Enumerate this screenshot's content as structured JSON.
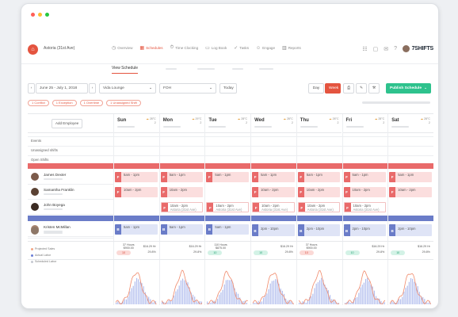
{
  "window": {
    "dots": [
      "#ff5f57",
      "#febc2e",
      "#28c840"
    ]
  },
  "header": {
    "location_name": "Astoria (31st Ave)",
    "nav": [
      {
        "label": "Overview",
        "icon": "clock-icon",
        "glyph": "◷"
      },
      {
        "label": "Schedules",
        "icon": "calendar-icon",
        "glyph": "▦",
        "active": true
      },
      {
        "label": "Time Clocking",
        "icon": "stopwatch-icon",
        "glyph": "⏱"
      },
      {
        "label": "Log Book",
        "icon": "book-icon",
        "glyph": "▭"
      },
      {
        "label": "Tasks",
        "icon": "check-icon",
        "glyph": "✓"
      },
      {
        "label": "Engage",
        "icon": "people-icon",
        "glyph": "☺"
      },
      {
        "label": "Reports",
        "icon": "chart-icon",
        "glyph": "▥"
      }
    ],
    "icons": [
      "grid-icon",
      "inbox-icon",
      "chat-icon",
      "help-icon"
    ],
    "brand": "7SHIFTS"
  },
  "subnav": {
    "view_schedule": "View Schedule"
  },
  "toolbar": {
    "date_range": "June 25 - July 1, 2018",
    "department": "Vida Lounge",
    "role": "FOH",
    "today": "Today",
    "day": "Day",
    "week": "Week",
    "publish": "Publish Schedule",
    "icons": [
      "print-icon",
      "edit-icon",
      "tools-icon"
    ]
  },
  "chips": [
    "1 Conflict",
    "1 Exception",
    "1 Overtime",
    "1 Unassigned Shift"
  ],
  "grid": {
    "add_employee": "Add Employee",
    "sections": {
      "events": "Events",
      "unassigned": "Unassigned shifts",
      "open": "Open Shifts"
    },
    "days": [
      {
        "name": "Sun",
        "stat": "28°C",
        "count": "2"
      },
      {
        "name": "Mon",
        "stat": "29°C",
        "count": "2"
      },
      {
        "name": "Tue",
        "stat": "28°C",
        "count": "2"
      },
      {
        "name": "Wed",
        "stat": "28°C",
        "count": "2"
      },
      {
        "name": "Thu",
        "stat": "26°C",
        "count": "2"
      },
      {
        "name": "Fri",
        "stat": "28°C",
        "count": "2"
      },
      {
        "name": "Sat",
        "stat": "28°C",
        "count": "2"
      }
    ],
    "employees": [
      {
        "name": "James Dexter",
        "avatar": "#7b5a4a"
      },
      {
        "name": "Samantha Franklin",
        "avatar": "#5a4133"
      },
      {
        "name": "John Boyega",
        "avatar": "#3b2b22"
      },
      {
        "name": "Kristen McMillan",
        "avatar": "#a88570"
      },
      {
        "name": "",
        "avatar": "#8e7767"
      }
    ],
    "shifts": [
      [
        {
          "tag": "F",
          "time": "5am - 1pm",
          "color": "red",
          "loc": ""
        },
        {
          "tag": "F",
          "time": "5am - 1pm",
          "color": "red",
          "loc": ""
        },
        {
          "tag": "F",
          "time": "5am - 1pm",
          "color": "red",
          "loc": ""
        },
        {
          "tag": "F",
          "time": "5am - 1pm",
          "color": "red",
          "loc": ""
        },
        {
          "tag": "F",
          "time": "5am - 1pm",
          "color": "red",
          "loc": ""
        },
        {
          "tag": "F",
          "time": "5am - 1pm",
          "color": "red",
          "loc": ""
        },
        {
          "tag": "F",
          "time": "5am - 1pm",
          "color": "red",
          "loc": ""
        }
      ],
      [
        {
          "tag": "F",
          "time": "10am - 2pm",
          "color": "red",
          "loc": ""
        },
        {
          "tag": "F",
          "time": "10am - 2pm",
          "color": "red",
          "loc": ""
        },
        null,
        {
          "tag": "F",
          "time": "10am - 2pm",
          "color": "red",
          "loc": ""
        },
        {
          "tag": "F",
          "time": "10am - 2pm",
          "color": "red",
          "loc": ""
        },
        {
          "tag": "F",
          "time": "10am - 2pm",
          "color": "red",
          "loc": ""
        },
        {
          "tag": "F",
          "time": "10am - 2pm",
          "color": "red",
          "loc": ""
        }
      ],
      [
        null,
        {
          "tag": "F",
          "time": "10am - 2pm",
          "color": "red",
          "loc": "Astoria (31st Ave)"
        },
        {
          "tag": "F",
          "time": "10am - 2pm",
          "color": "red",
          "loc": "Astoria (31st Ave)"
        },
        {
          "tag": "F",
          "time": "10am - 2pm",
          "color": "red",
          "loc": "Astoria (31st Ave)"
        },
        {
          "tag": "F",
          "time": "10am - 2pm",
          "color": "red",
          "loc": "Astoria (31st Ave)"
        },
        {
          "tag": "F",
          "time": "10am - 2pm",
          "color": "red",
          "loc": "Astoria (31st Ave)"
        },
        null
      ],
      [
        {
          "tag": "B",
          "time": "5am - 1pm",
          "color": "blue",
          "loc": ""
        },
        {
          "tag": "B",
          "time": "5am - 1pm",
          "color": "blue",
          "loc": ""
        },
        {
          "tag": "B",
          "time": "5am - 1pm",
          "color": "blue",
          "loc": ""
        },
        {
          "tag": "B",
          "time": "5am - 1pm",
          "color": "blue",
          "loc": ""
        },
        {
          "tag": "B",
          "time": "5am - 1pm",
          "color": "blue",
          "loc": ""
        },
        {
          "tag": "B",
          "time": "5am - 1pm",
          "color": "blue",
          "loc": ""
        },
        {
          "tag": "B",
          "time": "5am - 1pm",
          "color": "blue",
          "loc": ""
        }
      ],
      [
        null,
        null,
        null,
        {
          "tag": "B",
          "time": "2pm - 10pm",
          "color": "blue",
          "loc": ""
        },
        {
          "tag": "B",
          "time": "2pm - 10pm",
          "color": "blue",
          "loc": ""
        },
        {
          "tag": "B",
          "time": "2pm - 10pm",
          "color": "blue",
          "loc": ""
        },
        {
          "tag": "B",
          "time": "2pm - 10pm",
          "color": "blue",
          "loc": ""
        }
      ]
    ],
    "legend": [
      "Projected Sales",
      "Actual Labor",
      "Scheduled Labor"
    ],
    "legend_colors": [
      "#f4a585",
      "#6b7fd7",
      "#c5c9d1"
    ],
    "stats": [
      {
        "hours": "37 Hours",
        "cost": "$900.00",
        "pill": "10",
        "pill_color": "red",
        "right1": "$16.29 Hr",
        "right2": "29.8%"
      },
      {
        "hours": "",
        "cost": "",
        "pill": "",
        "pill_color": "",
        "right1": "$16.29 Hr",
        "right2": "29.8%"
      },
      {
        "hours": "110 Hours",
        "cost": "$875.00",
        "pill": "10",
        "pill_color": "green",
        "right1": "",
        "right2": ""
      },
      {
        "hours": "",
        "cost": "",
        "pill": "10",
        "pill_color": "green",
        "right1": "$16.29 Hr",
        "right2": "29.8%"
      },
      {
        "hours": "37 Hours",
        "cost": "$900.00",
        "pill": "10",
        "pill_color": "red",
        "right1": "",
        "right2": ""
      },
      {
        "hours": "",
        "cost": "",
        "pill": "10",
        "pill_color": "green",
        "right1": "$16.29 Hr",
        "right2": "29.8%"
      },
      {
        "hours": "",
        "cost": "",
        "pill": "10",
        "pill_color": "green",
        "right1": "$16.29 Hr",
        "right2": "29.8%"
      }
    ]
  },
  "colors": {
    "accent": "#e4543f",
    "red_band": "#e96a6a",
    "blue_band": "#6a7cc8",
    "red_shift_bg": "#fbdede",
    "blue_shift_bg": "#dfe4f6",
    "green": "#2ec28d"
  }
}
